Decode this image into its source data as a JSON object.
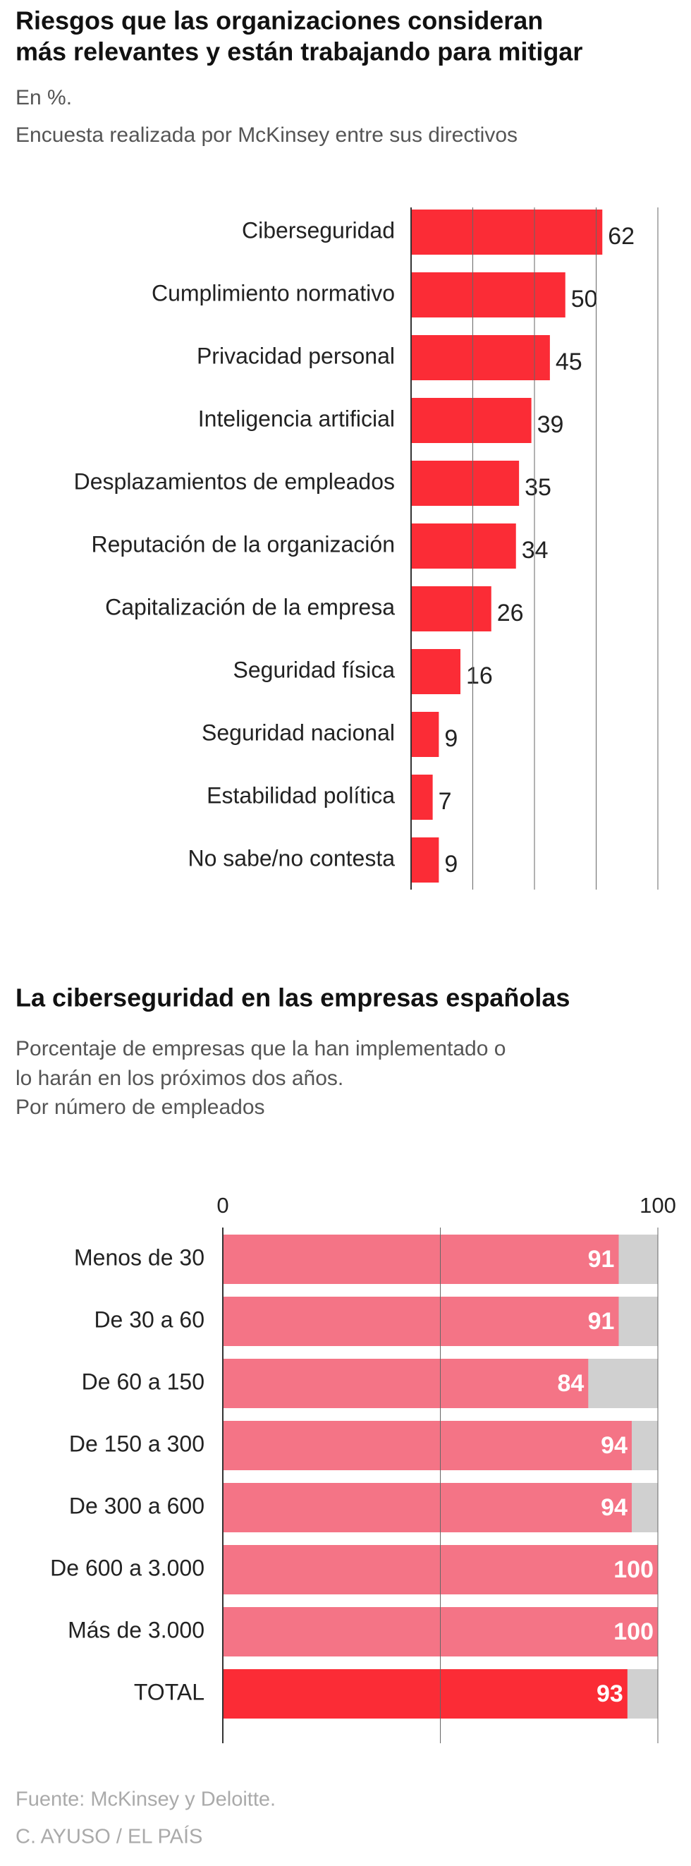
{
  "chart_data": [
    {
      "type": "bar",
      "orientation": "horizontal",
      "title": [
        "Riesgos que las organizaciones consideran",
        "más relevantes y están trabajando para mitigar"
      ],
      "subtitle": [
        "En %.",
        "Encuesta realizada por McKinsey entre sus directivos"
      ],
      "categories": [
        "Ciberseguridad",
        "Cumplimiento normativo",
        "Privacidad personal",
        "Inteligencia artificial",
        "Desplazamientos de empleados",
        "Reputación de la organización",
        "Capitalización de la empresa",
        "Seguridad física",
        "Seguridad nacional",
        "Estabilidad política",
        "No sabe/no contesta"
      ],
      "values": [
        62,
        50,
        45,
        39,
        35,
        34,
        26,
        16,
        9,
        7,
        9
      ],
      "color": "#fb2c36",
      "xlim": [
        0,
        80
      ],
      "xticks": [
        0,
        20,
        40,
        60,
        80
      ],
      "grid": true
    },
    {
      "type": "bar",
      "orientation": "horizontal",
      "title": [
        "La ciberseguridad en las empresas españolas"
      ],
      "subtitle": [
        "Porcentaje de empresas que la han implementado o",
        "lo harán en los próximos dos años.",
        "Por número de empleados"
      ],
      "categories": [
        "Menos de 30",
        "De 30 a 60",
        "De 60 a 150",
        "De 150 a 300",
        "De 300 a 600",
        "De 600 a 3.000",
        "Más de 3.000",
        "TOTAL"
      ],
      "values": [
        91,
        91,
        84,
        94,
        94,
        100,
        100,
        93
      ],
      "colors": [
        "#f47486",
        "#f47486",
        "#f47486",
        "#f47486",
        "#f47486",
        "#f47486",
        "#f47486",
        "#fb2c36"
      ],
      "track_color": "#d0d0d0",
      "xlim": [
        0,
        100
      ],
      "xticks": [
        0,
        100
      ],
      "xgrid": [
        0,
        50,
        100
      ]
    }
  ],
  "source": "Fuente: McKinsey y Deloitte.",
  "credit": "C. AYUSO / EL PAÍS"
}
